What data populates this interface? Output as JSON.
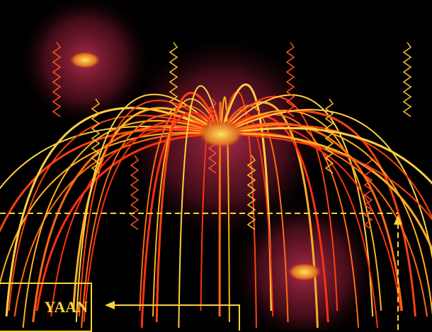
{
  "label": {
    "text": "YAAN"
  }
}
